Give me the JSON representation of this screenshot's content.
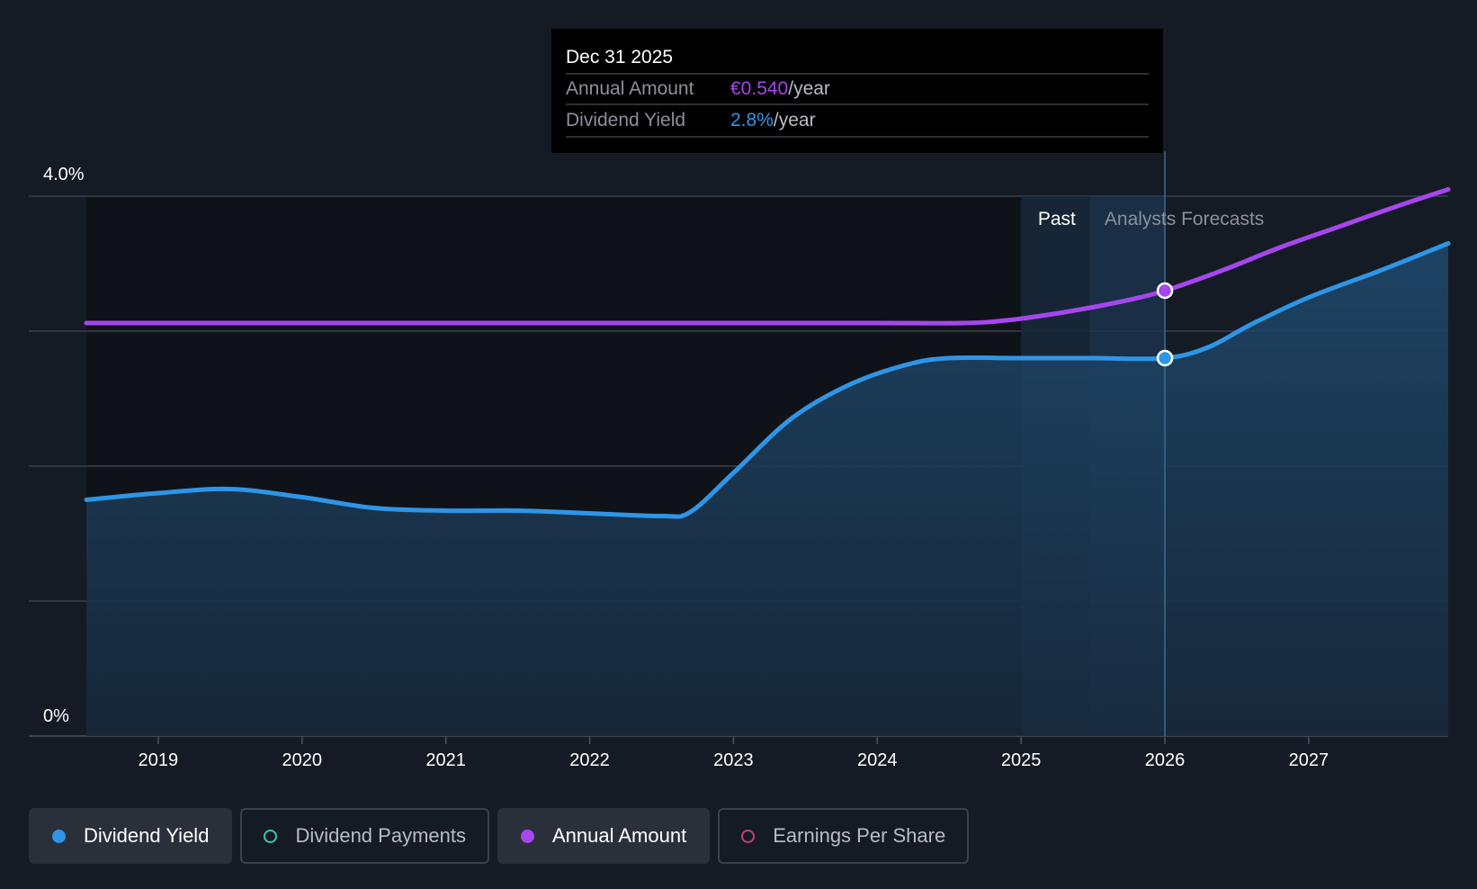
{
  "colors": {
    "background": "#151b24",
    "yield": "#2f95e6",
    "annual": "#a646ee",
    "payments": "#3cc4b4",
    "eps": "#c0406f",
    "grid": "#3a414c",
    "text": "#ffffff",
    "muted": "#8b9099"
  },
  "tooltip": {
    "date": "Dec 31 2025",
    "rows": [
      {
        "label": "Annual Amount",
        "value": "€0.540",
        "suffix": "/year",
        "color": "#a646ee"
      },
      {
        "label": "Dividend Yield",
        "value": "2.8%",
        "suffix": "/year",
        "color": "#2f95e6"
      }
    ]
  },
  "regions": {
    "past_label": "Past",
    "forecast_label": "Analysts Forecasts"
  },
  "legend": [
    {
      "label": "Dividend Yield",
      "color": "#2f95e6",
      "active": true,
      "filled": true
    },
    {
      "label": "Dividend Payments",
      "color": "#3cc4b4",
      "active": false,
      "filled": false
    },
    {
      "label": "Annual Amount",
      "color": "#a646ee",
      "active": true,
      "filled": true
    },
    {
      "label": "Earnings Per Share",
      "color": "#c0406f",
      "active": false,
      "filled": false
    }
  ],
  "chart_data": {
    "type": "line",
    "title": "",
    "xlabel": "",
    "ylabel": "",
    "y_tick_labels": [
      "4.0%",
      "0%"
    ],
    "ylim": [
      0,
      4.0
    ],
    "xlim": [
      2018.4,
      2027.97
    ],
    "x_ticks": [
      2019,
      2020,
      2021,
      2022,
      2023,
      2024,
      2025,
      2026,
      2027
    ],
    "grid": true,
    "past_forecast_boundary": 2025.0,
    "highlight_date": 2026.0,
    "series": [
      {
        "name": "Dividend Yield",
        "axis": "percent",
        "area": true,
        "points": [
          [
            2018.5,
            1.75
          ],
          [
            2019.0,
            1.8
          ],
          [
            2019.5,
            1.83
          ],
          [
            2020.0,
            1.77
          ],
          [
            2020.5,
            1.69
          ],
          [
            2021.0,
            1.67
          ],
          [
            2021.5,
            1.67
          ],
          [
            2022.0,
            1.65
          ],
          [
            2022.5,
            1.63
          ],
          [
            2022.7,
            1.66
          ],
          [
            2023.0,
            1.95
          ],
          [
            2023.4,
            2.35
          ],
          [
            2023.8,
            2.6
          ],
          [
            2024.2,
            2.75
          ],
          [
            2024.5,
            2.8
          ],
          [
            2025.0,
            2.8
          ],
          [
            2025.5,
            2.8
          ],
          [
            2026.0,
            2.8
          ],
          [
            2026.3,
            2.88
          ],
          [
            2026.6,
            3.05
          ],
          [
            2027.0,
            3.25
          ],
          [
            2027.5,
            3.45
          ],
          [
            2027.97,
            3.65
          ]
        ]
      },
      {
        "name": "Annual Amount",
        "axis": "currency",
        "area": false,
        "points": [
          [
            2018.5,
            3.06
          ],
          [
            2019.0,
            3.06
          ],
          [
            2020.0,
            3.06
          ],
          [
            2021.0,
            3.06
          ],
          [
            2022.0,
            3.06
          ],
          [
            2023.0,
            3.06
          ],
          [
            2024.0,
            3.06
          ],
          [
            2024.6,
            3.06
          ],
          [
            2024.9,
            3.08
          ],
          [
            2025.3,
            3.14
          ],
          [
            2025.7,
            3.22
          ],
          [
            2026.0,
            3.3
          ],
          [
            2026.4,
            3.45
          ],
          [
            2026.8,
            3.62
          ],
          [
            2027.2,
            3.77
          ],
          [
            2027.6,
            3.92
          ],
          [
            2027.97,
            4.05
          ]
        ]
      }
    ]
  }
}
